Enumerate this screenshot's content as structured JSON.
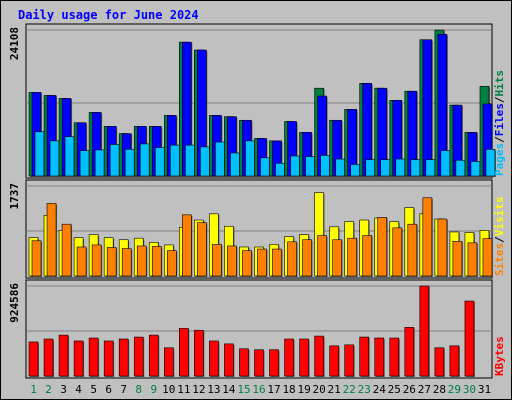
{
  "title": "Daily usage for June 2024",
  "chart_data": [
    {
      "type": "bar",
      "categories": [
        "1",
        "2",
        "3",
        "4",
        "5",
        "6",
        "7",
        "8",
        "9",
        "10",
        "11",
        "12",
        "13",
        "14",
        "15",
        "16",
        "17",
        "18",
        "19",
        "20",
        "21",
        "22",
        "23",
        "24",
        "25",
        "26",
        "27",
        "28",
        "29",
        "30",
        "31"
      ],
      "weekend_days": [
        1,
        2,
        8,
        9,
        15,
        16,
        22,
        23,
        29,
        30
      ],
      "ymax_label": "24108",
      "ylim": [
        0,
        24108
      ],
      "series": [
        {
          "name": "Hits",
          "color": "#008040",
          "values": [
            13800,
            13300,
            12800,
            8800,
            10500,
            8200,
            7000,
            8200,
            8200,
            10000,
            22100,
            20800,
            10000,
            9800,
            9200,
            6200,
            5800,
            9000,
            7200,
            14500,
            9200,
            11000,
            15300,
            14500,
            12500,
            14000,
            22500,
            24100,
            11700,
            7200,
            14800
          ]
        },
        {
          "name": "Files",
          "color": "#0000ff",
          "values": [
            13800,
            13300,
            12800,
            8800,
            10500,
            8200,
            7000,
            8200,
            8200,
            10000,
            22100,
            20800,
            10000,
            9800,
            9200,
            6200,
            5800,
            9000,
            7200,
            13200,
            9200,
            11000,
            15300,
            14500,
            12500,
            14000,
            22500,
            23400,
            11700,
            7200,
            11900
          ]
        },
        {
          "name": "Pages",
          "color": "#00bfff",
          "values": [
            7300,
            5800,
            6500,
            4200,
            4300,
            5200,
            4400,
            5300,
            4700,
            5100,
            5100,
            4800,
            5600,
            3800,
            5800,
            3000,
            2100,
            3300,
            3200,
            3400,
            2800,
            1900,
            2700,
            2700,
            2800,
            2700,
            2700,
            4200,
            2600,
            2400,
            4400
          ]
        }
      ],
      "y_right_labels": [
        "Pages",
        "Files",
        "Hits"
      ]
    },
    {
      "type": "bar",
      "categories": [
        "1",
        "2",
        "3",
        "4",
        "5",
        "6",
        "7",
        "8",
        "9",
        "10",
        "11",
        "12",
        "13",
        "14",
        "15",
        "16",
        "17",
        "18",
        "19",
        "20",
        "21",
        "22",
        "23",
        "24",
        "25",
        "26",
        "27",
        "28",
        "29",
        "30",
        "31"
      ],
      "ymax_label": "1737",
      "ylim": [
        0,
        1737
      ],
      "series": [
        {
          "name": "Visits",
          "color": "#ffff00",
          "values": [
            740,
            1170,
            880,
            740,
            800,
            740,
            700,
            730,
            650,
            600,
            940,
            1080,
            1200,
            960,
            560,
            560,
            610,
            760,
            800,
            1610,
            950,
            1050,
            1080,
            1120,
            1050,
            1320,
            1200,
            1100,
            850,
            840,
            880
          ]
        },
        {
          "name": "Sites",
          "color": "#ff8000",
          "values": [
            680,
            1400,
            1000,
            560,
            600,
            550,
            530,
            580,
            570,
            490,
            1180,
            1030,
            610,
            580,
            490,
            520,
            520,
            660,
            700,
            780,
            700,
            730,
            780,
            1130,
            930,
            1000,
            1510,
            1100,
            670,
            640,
            720
          ]
        }
      ],
      "y_right_labels": [
        "Sites",
        "Visits"
      ]
    },
    {
      "type": "bar",
      "categories": [
        "1",
        "2",
        "3",
        "4",
        "5",
        "6",
        "7",
        "8",
        "9",
        "10",
        "11",
        "12",
        "13",
        "14",
        "15",
        "16",
        "17",
        "18",
        "19",
        "20",
        "21",
        "22",
        "23",
        "24",
        "25",
        "26",
        "27",
        "28",
        "29",
        "30",
        "31"
      ],
      "ymax_label": "924586",
      "ylim": [
        0,
        924586
      ],
      "series": [
        {
          "name": "KBytes",
          "color": "#ff0000",
          "values": [
            350000,
            380000,
            420000,
            360000,
            390000,
            360000,
            380000,
            400000,
            420000,
            290000,
            490000,
            470000,
            360000,
            330000,
            280000,
            270000,
            270000,
            380000,
            380000,
            410000,
            310000,
            320000,
            400000,
            390000,
            390000,
            500000,
            930000,
            290000,
            310000,
            770000,
            0
          ]
        }
      ],
      "y_right_labels": [
        "KBytes"
      ]
    }
  ]
}
